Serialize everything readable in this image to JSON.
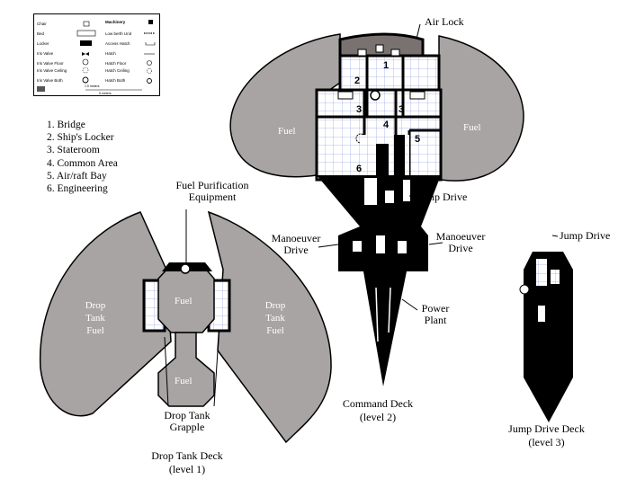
{
  "legend": {
    "left": [
      {
        "label": "Chair",
        "icon": "chair-icon"
      },
      {
        "label": "Bed",
        "icon": "bed-icon"
      },
      {
        "label": "Locker",
        "icon": "locker-icon"
      },
      {
        "label": "Iris Valve",
        "icon": "iris-valve-icon"
      },
      {
        "label": "Iris Valve Floor",
        "icon": "iris-valve-floor-icon"
      },
      {
        "label": "Iris Valve Ceiling",
        "icon": "iris-valve-ceiling-icon"
      },
      {
        "label": "Iris Valve Both",
        "icon": "iris-valve-both-icon"
      }
    ],
    "right": [
      {
        "label": "Machinery",
        "icon": "machinery-icon"
      },
      {
        "label": "Low berth Unit",
        "icon": "low-berth-icon"
      },
      {
        "label": "Access Hatch",
        "icon": "access-hatch-icon"
      },
      {
        "label": "Hatch",
        "icon": "hatch-icon"
      },
      {
        "label": "Hatch Floor",
        "icon": "hatch-floor-icon"
      },
      {
        "label": "Hatch Ceiling",
        "icon": "hatch-ceiling-icon"
      },
      {
        "label": "Hatch Both",
        "icon": "hatch-both-icon"
      }
    ],
    "scale_top": "1.5 meters",
    "scale_bottom": "5 meters"
  },
  "key": [
    "1. Bridge",
    "2. Ship's Locker",
    "3. Stateroom",
    "4. Common Area",
    "5. Air/raft Bay",
    "6. Engineering"
  ],
  "labels": {
    "air_lock": "Air Lock",
    "fuel": "Fuel",
    "jump_drive": "Jump Drive",
    "manoeuver_drive": "Manoeuver Drive",
    "power_plant": "Power Plant",
    "fuel_purification": "Fuel Purification Equipment",
    "drop_tank_fuel": "Drop Tank Fuel",
    "drop_tank_grapple": "Drop Tank Grapple"
  },
  "room_numbers": [
    "1",
    "2",
    "3",
    "3",
    "4",
    "5",
    "6"
  ],
  "decks": {
    "drop_tank": {
      "name": "Drop Tank Deck",
      "level": "(level 1)"
    },
    "command": {
      "name": "Command Deck",
      "level": "(level 2)"
    },
    "jump_drive": {
      "name": "Jump Drive Deck",
      "level": "(level 3)"
    }
  },
  "colors": {
    "fuel_tank": "#a7a4a3",
    "grid": "#6f7fd8",
    "hull": "#000000",
    "bridge_floor": "#7a7271"
  }
}
